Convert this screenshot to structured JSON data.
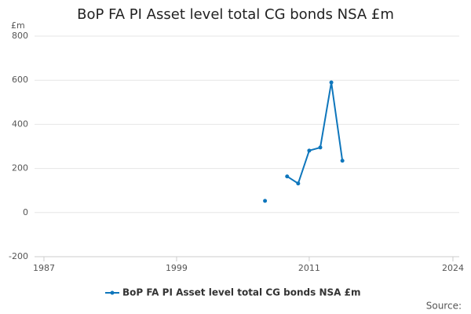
{
  "chart_data": {
    "type": "line",
    "title": "BoP FA PI Asset level total CG bonds NSA £m",
    "y_label": "£m",
    "x": [
      2007,
      2008,
      2009,
      2010,
      2011,
      2012,
      2013,
      2014
    ],
    "series": [
      {
        "name": "BoP FA PI Asset level total CG bonds NSA £m",
        "color": "#0e76bc",
        "values": [
          53,
          null,
          164,
          132,
          281,
          295,
          590,
          235
        ]
      }
    ],
    "xlim": [
      1986.15,
      2024.57
    ],
    "xticks": [
      1987,
      1999,
      2011,
      2024
    ],
    "ylim": [
      -200,
      800
    ],
    "yticks": [
      -200,
      0,
      200,
      400,
      600,
      800
    ],
    "grid": true,
    "legend": "bottom",
    "source": "Source:"
  }
}
